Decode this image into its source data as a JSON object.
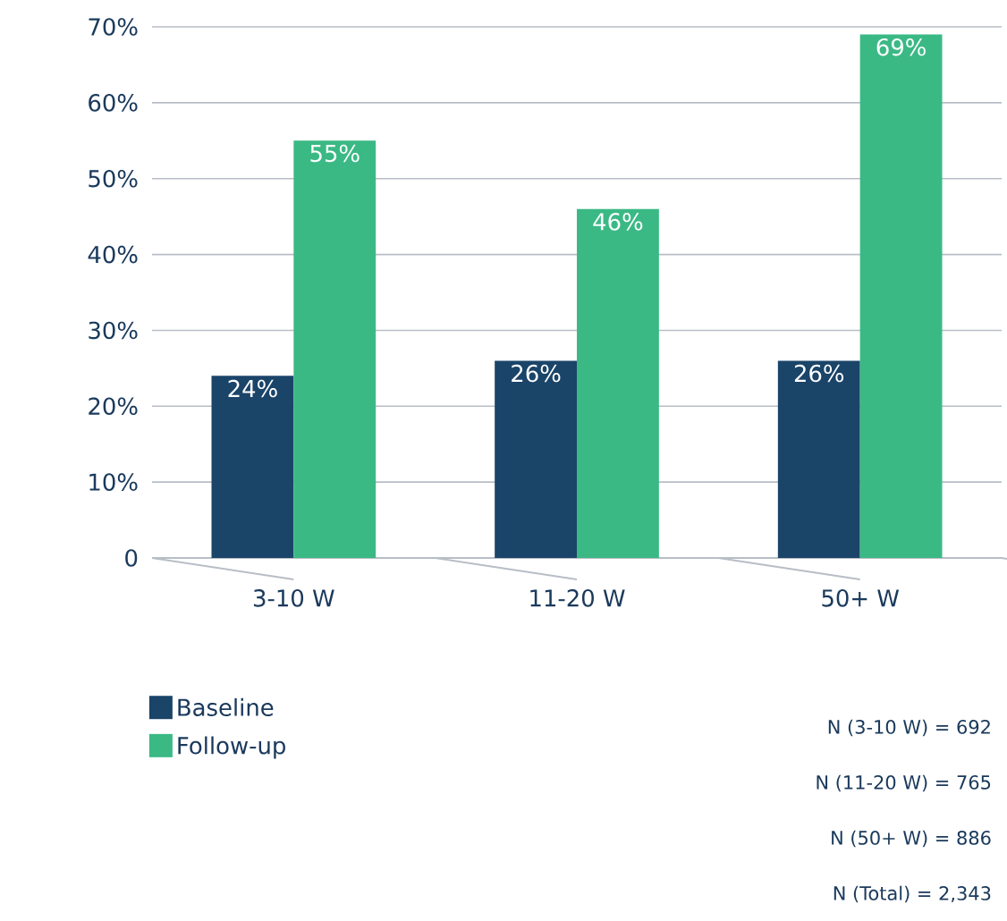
{
  "chart_data": {
    "type": "bar",
    "categories": [
      "3-10 W",
      "11-20 W",
      "50+ W"
    ],
    "series": [
      {
        "name": "Baseline",
        "color": "#1b4469",
        "values": [
          24,
          26,
          26
        ],
        "value_labels": [
          "24%",
          "26%",
          "26%"
        ]
      },
      {
        "name": "Follow-up",
        "color": "#3bb985",
        "values": [
          55,
          46,
          69
        ],
        "value_labels": [
          "55%",
          "46%",
          "69%"
        ]
      }
    ],
    "ylim": [
      0,
      70
    ],
    "yticks": [
      0,
      {
        "value": 10,
        "label": "10%"
      },
      {
        "value": 20,
        "label": "20%"
      },
      {
        "value": 30,
        "label": "30%"
      },
      {
        "value": 40,
        "label": "40%"
      },
      {
        "value": 50,
        "label": "50%"
      },
      {
        "value": 60,
        "label": "60%"
      },
      {
        "value": 70,
        "label": "70%"
      }
    ],
    "grid": "y",
    "legend": "bottom left",
    "annotations": [
      "N (3-10 W) = 692",
      "N (11-20 W) = 765",
      "N (50+ W) = 886",
      "N (Total) = 2,343"
    ]
  }
}
